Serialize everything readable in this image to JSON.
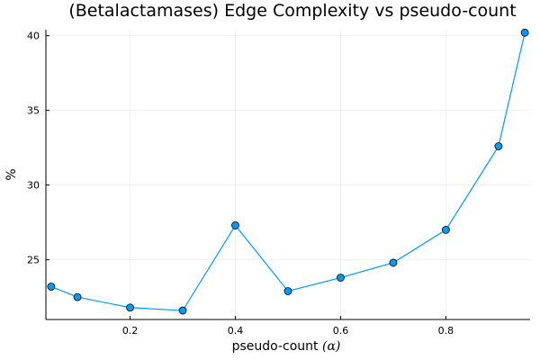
{
  "chart_data": {
    "type": "line",
    "title": "(Betalactamases) Edge Complexity vs pseudo-count",
    "xlabel": "pseudo-count",
    "xlabel_symbol": "(α)",
    "ylabel": "%",
    "xlim": [
      0.04,
      0.96
    ],
    "ylim": [
      21.0,
      40.4
    ],
    "xticks": [
      0.2,
      0.4,
      0.6,
      0.8
    ],
    "xtick_labels": [
      "0.2",
      "0.4",
      "0.6",
      "0.8"
    ],
    "yticks": [
      25,
      30,
      35,
      40
    ],
    "ytick_labels": [
      "25",
      "30",
      "35",
      "40"
    ],
    "grid": true,
    "legend": "none",
    "series": [
      {
        "color": "#009af9",
        "marker": "circle",
        "x": [
          0.05,
          0.1,
          0.2,
          0.3,
          0.4,
          0.5,
          0.6,
          0.7,
          0.8,
          0.9,
          0.95
        ],
        "y": [
          23.2,
          22.5,
          21.8,
          21.6,
          27.3,
          22.9,
          23.8,
          24.8,
          27.0,
          32.6,
          40.2
        ]
      }
    ]
  }
}
